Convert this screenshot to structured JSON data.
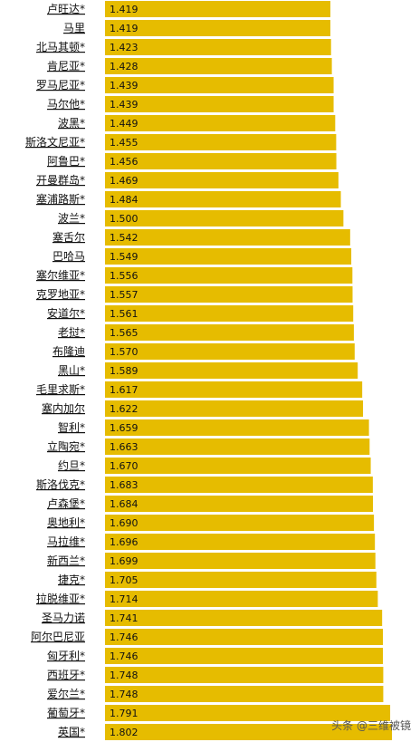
{
  "chart_data": {
    "type": "bar",
    "orientation": "horizontal",
    "categories": [
      "卢旺达*",
      "马里",
      "北马其顿*",
      "肯尼亚*",
      "罗马尼亚*",
      "马尔他*",
      "波黑*",
      "斯洛文尼亚*",
      "阿鲁巴*",
      "开曼群岛*",
      "塞浦路斯*",
      "波兰*",
      "塞舌尔",
      "巴哈马",
      "塞尔维亚*",
      "克罗地亚*",
      "安道尔*",
      "老挝*",
      "布隆迪",
      "黑山*",
      "毛里求斯*",
      "塞内加尔",
      "智利*",
      "立陶宛*",
      "约旦*",
      "斯洛伐克*",
      "卢森堡*",
      "奥地利*",
      "马拉维*",
      "新西兰*",
      "捷克*",
      "拉脱维亚*",
      "圣马力诺",
      "阿尔巴尼亚",
      "匈牙利*",
      "西班牙*",
      "爱尔兰*",
      "葡萄牙*",
      "英国*"
    ],
    "values": [
      1.419,
      1.419,
      1.423,
      1.428,
      1.439,
      1.439,
      1.449,
      1.455,
      1.456,
      1.469,
      1.484,
      1.5,
      1.542,
      1.549,
      1.556,
      1.557,
      1.561,
      1.565,
      1.57,
      1.589,
      1.617,
      1.622,
      1.659,
      1.663,
      1.67,
      1.683,
      1.684,
      1.69,
      1.696,
      1.699,
      1.705,
      1.714,
      1.741,
      1.746,
      1.746,
      1.748,
      1.748,
      1.791,
      1.802
    ],
    "value_labels": [
      "1.419",
      "1.419",
      "1.423",
      "1.428",
      "1.439",
      "1.439",
      "1.449",
      "1.455",
      "1.456",
      "1.469",
      "1.484",
      "1.500",
      "1.542",
      "1.549",
      "1.556",
      "1.557",
      "1.561",
      "1.565",
      "1.570",
      "1.589",
      "1.617",
      "1.622",
      "1.659",
      "1.663",
      "1.670",
      "1.683",
      "1.684",
      "1.690",
      "1.696",
      "1.699",
      "1.705",
      "1.714",
      "1.741",
      "1.746",
      "1.746",
      "1.748",
      "1.748",
      "1.791",
      "1.802"
    ],
    "bar_color": "#E6BC00",
    "title": "",
    "xlabel": "",
    "ylabel": "",
    "grid": false
  },
  "watermark": "头条 @三维被镜"
}
